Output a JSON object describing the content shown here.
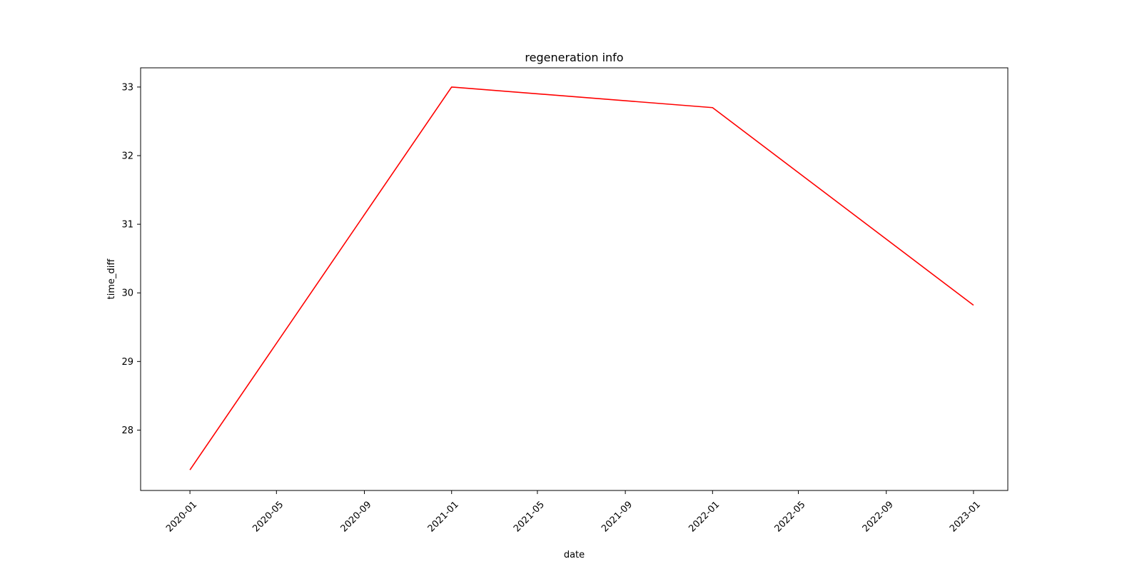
{
  "chart_data": {
    "type": "line",
    "title": "regeneration info",
    "xlabel": "date",
    "ylabel": "time_diff",
    "x": [
      "2020-01-01",
      "2021-01-01",
      "2022-01-01",
      "2023-01-01"
    ],
    "series": [
      {
        "values": [
          27.42,
          33.0,
          32.7,
          29.82
        ],
        "color": "#ff0000"
      }
    ],
    "xlim": [
      "2019-10-24",
      "2023-02-18"
    ],
    "ylim": [
      27.12,
      33.28
    ],
    "x_ticks": [
      "2020-01",
      "2020-05",
      "2020-09",
      "2021-01",
      "2021-05",
      "2021-09",
      "2022-01",
      "2022-05",
      "2022-09",
      "2023-01"
    ],
    "y_ticks": [
      28,
      29,
      30,
      31,
      32,
      33
    ],
    "grid": false,
    "legend": "none"
  }
}
